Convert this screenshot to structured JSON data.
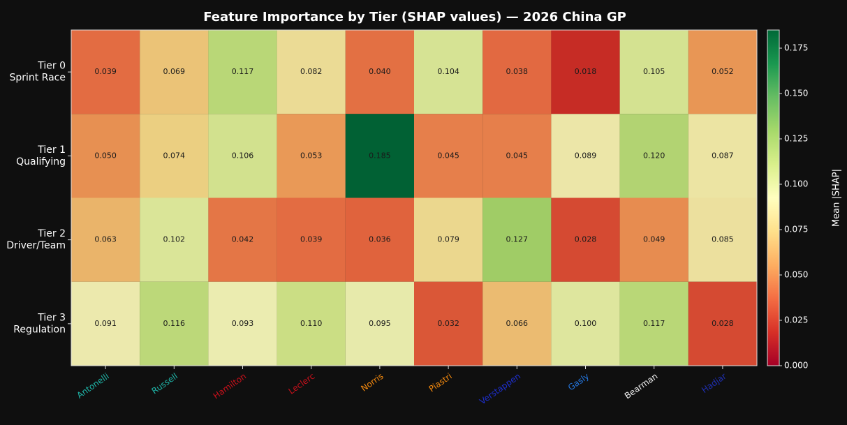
{
  "chart_data": {
    "type": "heatmap",
    "title": "Feature Importance by Tier (SHAP values) — 2026 China GP",
    "categories": [
      "Antonelli",
      "Russell",
      "Hamilton",
      "Leclerc",
      "Norris",
      "Piastri",
      "Verstappen",
      "Gasly",
      "Bearman",
      "Hadjar"
    ],
    "category_colors": [
      "#1fb5a8",
      "#1fb5a8",
      "#c8101b",
      "#c8101b",
      "#f58a0f",
      "#f58a0f",
      "#1e2fd0",
      "#2477e0",
      "#f0f0f0",
      "#1f2fb0"
    ],
    "y_categories": [
      [
        "Tier 0",
        "Sprint Race"
      ],
      [
        "Tier 1",
        "Qualifying"
      ],
      [
        "Tier 2",
        "Driver/Team"
      ],
      [
        "Tier 3",
        "Regulation"
      ]
    ],
    "values": [
      [
        0.039,
        0.069,
        0.117,
        0.082,
        0.04,
        0.104,
        0.038,
        0.018,
        0.105,
        0.052
      ],
      [
        0.05,
        0.074,
        0.106,
        0.053,
        0.185,
        0.045,
        0.045,
        0.089,
        0.12,
        0.087
      ],
      [
        0.063,
        0.102,
        0.042,
        0.039,
        0.036,
        0.079,
        0.127,
        0.028,
        0.049,
        0.085
      ],
      [
        0.091,
        0.116,
        0.093,
        0.11,
        0.095,
        0.032,
        0.066,
        0.1,
        0.117,
        0.028
      ]
    ],
    "value_labels": [
      [
        "0.039",
        "0.069",
        "0.117",
        "0.082",
        "0.040",
        "0.104",
        "0.038",
        "0.018",
        "0.105",
        "0.052"
      ],
      [
        "0.050",
        "0.074",
        "0.106",
        "0.053",
        "0.185",
        "0.045",
        "0.045",
        "0.089",
        "0.120",
        "0.087"
      ],
      [
        "0.063",
        "0.102",
        "0.042",
        "0.039",
        "0.036",
        "0.079",
        "0.127",
        "0.028",
        "0.049",
        "0.085"
      ],
      [
        "0.091",
        "0.116",
        "0.093",
        "0.110",
        "0.095",
        "0.032",
        "0.066",
        "0.100",
        "0.117",
        "0.028"
      ]
    ],
    "colormap": "RdYlGn",
    "clim": [
      0,
      0.185
    ],
    "colorbar_label": "Mean |SHAP|",
    "colorbar_ticks": [
      {
        "value": 0,
        "label": "0.000"
      },
      0.025,
      {
        "value": 0.05,
        "label": "0.050"
      },
      0.075,
      {
        "value": 0.1,
        "label": "0.100"
      },
      0.125,
      {
        "value": 0.15,
        "label": "0.150"
      },
      0.175
    ]
  }
}
